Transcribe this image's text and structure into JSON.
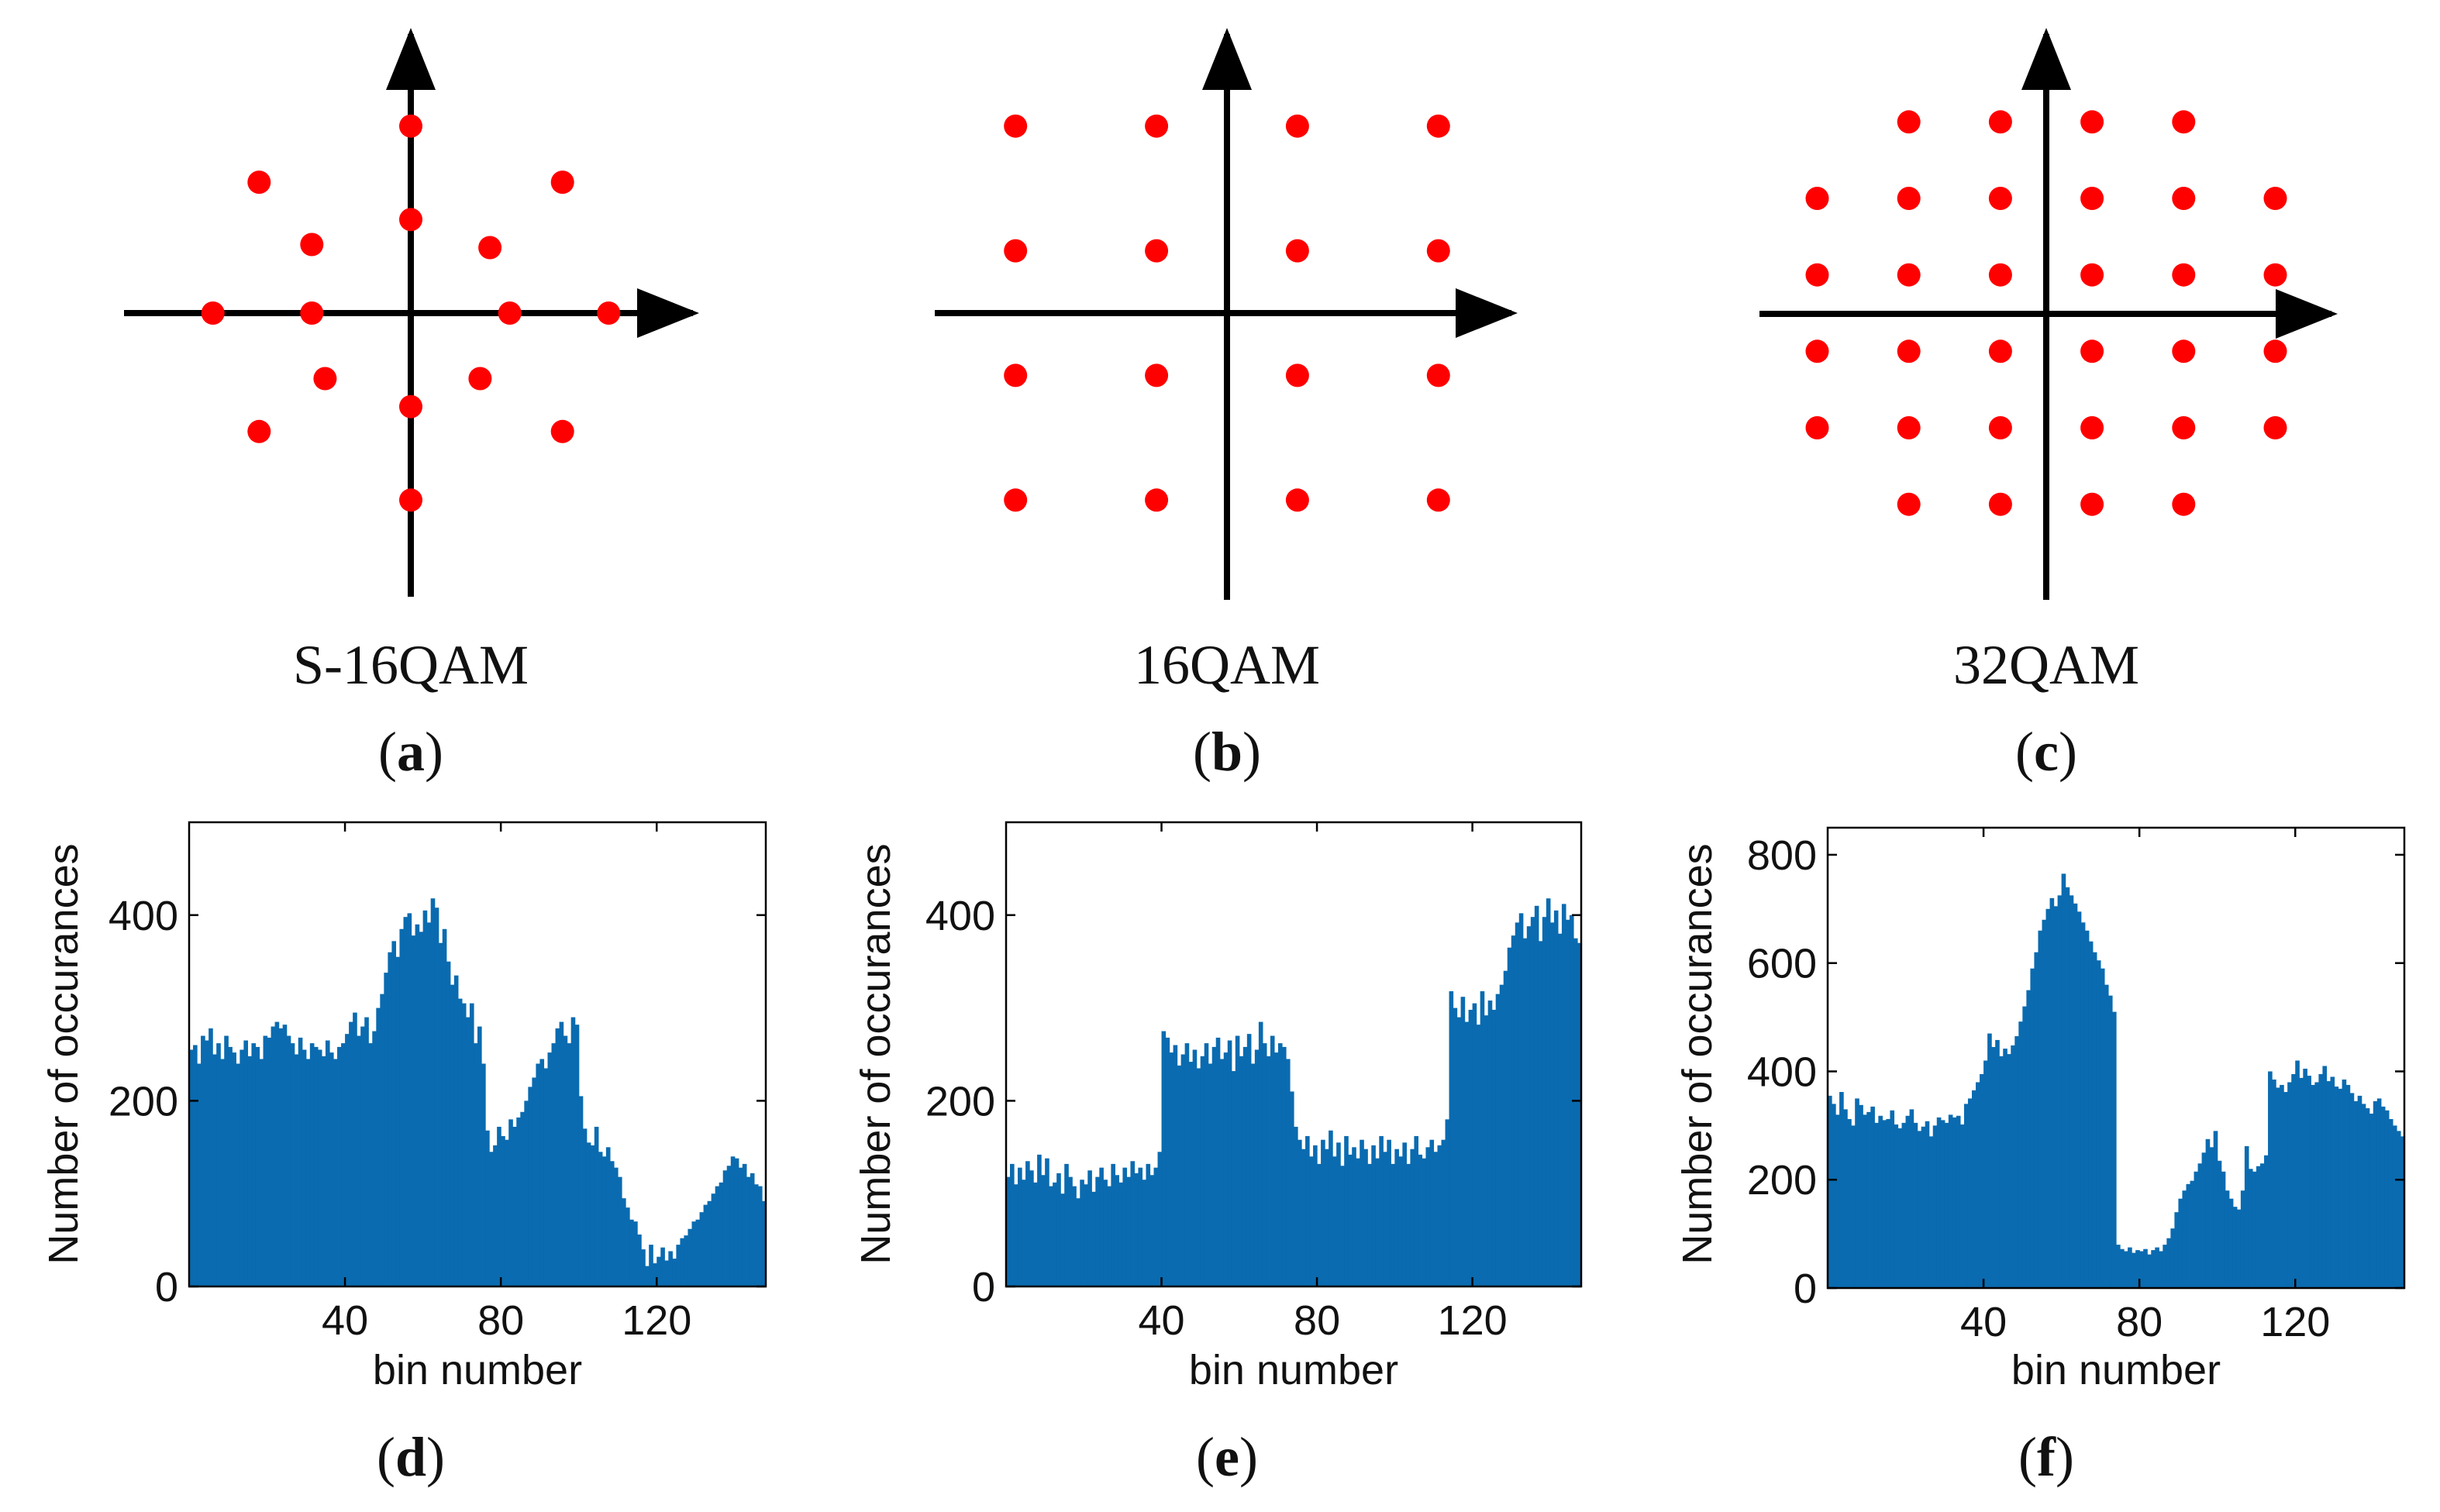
{
  "figure": {
    "panel_letters": [
      "a",
      "b",
      "c",
      "d",
      "e",
      "f"
    ]
  },
  "colors": {
    "point": "#ff0000",
    "bar": "#0a6bb0",
    "axis": "#000000"
  },
  "chart_data": [
    {
      "type": "scatter",
      "panel": "a",
      "title": "S-16QAM",
      "x": [
        0,
        0,
        0,
        0,
        -3,
        -1.5,
        1.5,
        3,
        -1.5,
        1.2,
        -1.3,
        1.05,
        -2.3,
        2.3,
        -2.3,
        2.3
      ],
      "y": [
        3,
        1.5,
        -1.5,
        -3,
        0,
        0,
        0,
        0,
        1.1,
        1.05,
        -1.05,
        -1.05,
        2.1,
        2.1,
        -1.9,
        -1.9
      ],
      "xlim": [
        -4.7,
        4.7
      ],
      "ylim": [
        -4.6,
        4.6
      ],
      "grid": false
    },
    {
      "type": "scatter",
      "panel": "b",
      "title": "16QAM",
      "x": [
        -3,
        -1,
        1,
        3,
        -3,
        -1,
        1,
        3,
        -3,
        -1,
        1,
        3,
        -3,
        -1,
        1,
        3
      ],
      "y": [
        3,
        3,
        3,
        3,
        1,
        1,
        1,
        1,
        -1,
        -1,
        -1,
        -1,
        -3,
        -3,
        -3,
        -3
      ],
      "xlim": [
        -4.3,
        4.3
      ],
      "ylim": [
        -4.6,
        4.6
      ],
      "grid": false
    },
    {
      "type": "scatter",
      "panel": "c",
      "title": "32QAM",
      "x": [
        -3,
        -1,
        1,
        3,
        -5,
        -3,
        -1,
        1,
        3,
        5,
        -5,
        -3,
        -1,
        1,
        3,
        5,
        -5,
        -3,
        -1,
        1,
        3,
        5,
        -5,
        -3,
        -1,
        1,
        3,
        5,
        -3,
        -1,
        1,
        3
      ],
      "y": [
        5,
        5,
        5,
        5,
        3,
        3,
        3,
        3,
        3,
        3,
        1,
        1,
        1,
        1,
        1,
        1,
        -1,
        -1,
        -1,
        -1,
        -1,
        -1,
        -3,
        -3,
        -3,
        -3,
        -3,
        -3,
        -5,
        -5,
        -5,
        -5
      ],
      "xlim": [
        -6.6,
        6.6
      ],
      "ylim": [
        -7.5,
        7.5
      ],
      "grid": false
    },
    {
      "type": "bar",
      "panel": "d",
      "xlabel": "bin number",
      "ylabel": "Number of occurances",
      "xlim": [
        0,
        148
      ],
      "ylim": [
        0,
        500
      ],
      "xticks": [
        "40",
        "80",
        "120"
      ],
      "yticks": [
        "0",
        "200",
        "400"
      ],
      "values": [
        255,
        260,
        240,
        270,
        265,
        278,
        250,
        262,
        245,
        270,
        258,
        252,
        240,
        255,
        265,
        248,
        262,
        258,
        245,
        270,
        268,
        280,
        285,
        278,
        282,
        270,
        262,
        250,
        268,
        255,
        245,
        262,
        258,
        255,
        248,
        265,
        252,
        245,
        258,
        262,
        272,
        285,
        295,
        270,
        280,
        290,
        262,
        275,
        300,
        315,
        338,
        360,
        372,
        355,
        385,
        398,
        402,
        378,
        390,
        382,
        405,
        392,
        418,
        408,
        370,
        385,
        350,
        325,
        335,
        310,
        305,
        290,
        305,
        262,
        280,
        240,
        168,
        145,
        152,
        172,
        162,
        158,
        180,
        172,
        182,
        188,
        200,
        215,
        225,
        240,
        245,
        235,
        252,
        262,
        278,
        285,
        270,
        262,
        290,
        282,
        205,
        170,
        155,
        152,
        172,
        145,
        140,
        150,
        135,
        128,
        118,
        95,
        85,
        72,
        70,
        56,
        40,
        22,
        45,
        25,
        32,
        42,
        28,
        38,
        30,
        45,
        52,
        55,
        62,
        70,
        72,
        80,
        88,
        92,
        100,
        108,
        112,
        125,
        130,
        140,
        138,
        128,
        132,
        118,
        122,
        110,
        108,
        92
      ]
    },
    {
      "type": "bar",
      "panel": "e",
      "xlabel": "bin number",
      "ylabel": "Number of occurances",
      "xlim": [
        0,
        148
      ],
      "ylim": [
        0,
        500
      ],
      "xticks": [
        "40",
        "80",
        "120"
      ],
      "yticks": [
        "0",
        "200",
        "400"
      ],
      "values": [
        118,
        132,
        110,
        128,
        115,
        135,
        125,
        112,
        142,
        120,
        138,
        108,
        112,
        122,
        100,
        132,
        118,
        108,
        95,
        115,
        110,
        125,
        102,
        118,
        128,
        115,
        108,
        132,
        120,
        112,
        128,
        118,
        135,
        122,
        128,
        115,
        132,
        120,
        128,
        145,
        275,
        268,
        252,
        260,
        238,
        250,
        262,
        242,
        255,
        235,
        248,
        262,
        240,
        258,
        268,
        245,
        252,
        265,
        232,
        270,
        248,
        258,
        272,
        240,
        255,
        285,
        262,
        248,
        270,
        252,
        262,
        258,
        245,
        210,
        172,
        158,
        148,
        162,
        140,
        152,
        132,
        158,
        148,
        168,
        140,
        155,
        130,
        162,
        142,
        150,
        138,
        158,
        148,
        132,
        152,
        138,
        162,
        145,
        158,
        132,
        148,
        140,
        155,
        132,
        148,
        162,
        142,
        138,
        150,
        158,
        145,
        152,
        158,
        180,
        318,
        300,
        290,
        312,
        285,
        298,
        305,
        282,
        318,
        292,
        308,
        298,
        315,
        325,
        340,
        365,
        378,
        392,
        402,
        375,
        388,
        398,
        410,
        372,
        398,
        418,
        392,
        405,
        380,
        412,
        395,
        400,
        375,
        370
      ]
    },
    {
      "type": "bar",
      "panel": "f",
      "xlabel": "bin number",
      "ylabel": "Number of occurances",
      "xlim": [
        0,
        148
      ],
      "ylim": [
        0,
        850
      ],
      "xticks": [
        "40",
        "80",
        "120"
      ],
      "yticks": [
        "0",
        "200",
        "400",
        "600",
        "800"
      ],
      "values": [
        355,
        340,
        320,
        362,
        330,
        312,
        300,
        350,
        338,
        320,
        325,
        335,
        305,
        318,
        310,
        312,
        328,
        302,
        295,
        305,
        318,
        330,
        305,
        290,
        298,
        308,
        280,
        300,
        315,
        310,
        305,
        320,
        315,
        318,
        302,
        340,
        350,
        365,
        380,
        395,
        420,
        470,
        445,
        458,
        428,
        442,
        432,
        448,
        465,
        492,
        520,
        550,
        590,
        620,
        660,
        680,
        700,
        720,
        705,
        725,
        765,
        740,
        725,
        710,
        695,
        675,
        660,
        640,
        620,
        605,
        590,
        560,
        540,
        510,
        80,
        72,
        68,
        75,
        65,
        70,
        68,
        72,
        62,
        70,
        75,
        68,
        80,
        92,
        110,
        140,
        165,
        180,
        192,
        198,
        215,
        230,
        250,
        275,
        260,
        290,
        235,
        215,
        180,
        165,
        150,
        145,
        180,
        262,
        220,
        215,
        225,
        230,
        245,
        400,
        385,
        370,
        375,
        362,
        380,
        395,
        420,
        388,
        405,
        392,
        375,
        380,
        395,
        410,
        382,
        390,
        372,
        368,
        385,
        375,
        360,
        345,
        355,
        340,
        332,
        322,
        345,
        350,
        335,
        328,
        312,
        300,
        290,
        280
      ]
    }
  ]
}
